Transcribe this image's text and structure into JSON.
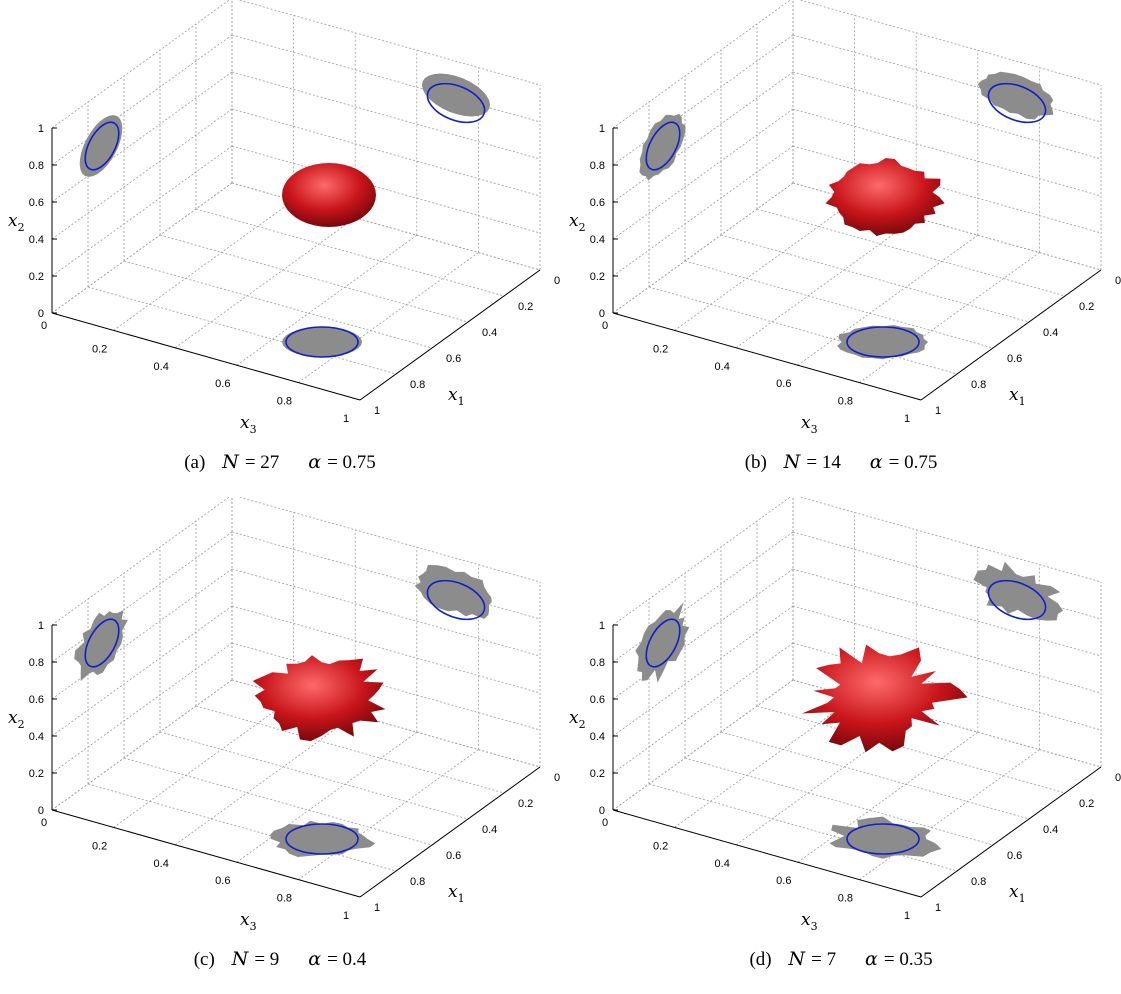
{
  "figure": {
    "axes": {
      "x_label": "x",
      "x_sub": "3",
      "y_label": "x",
      "y_sub": "2",
      "z_label": "x",
      "z_sub": "1",
      "x_ticks": [
        "0",
        "0.2",
        "0.4",
        "0.6",
        "0.8",
        "1"
      ],
      "y_ticks": [
        "0",
        "0.2",
        "0.4",
        "0.6",
        "0.8",
        "1"
      ],
      "z_ticks": [
        "0",
        "0.2",
        "0.4",
        "0.6",
        "0.8",
        "1"
      ]
    },
    "colors": {
      "surface": "#c8151b",
      "projection": "#8c8c8c",
      "ellipse": "#1020c8",
      "grid": "#9a9a9a"
    },
    "panels": [
      {
        "id": "a",
        "label": "(a)",
        "N": "27",
        "alpha": "0.75",
        "roughness": 0.0
      },
      {
        "id": "b",
        "label": "(b)",
        "N": "14",
        "alpha": "0.75",
        "roughness": 0.35
      },
      {
        "id": "c",
        "label": "(c)",
        "N": "9",
        "alpha": "0.4",
        "roughness": 0.6
      },
      {
        "id": "d",
        "label": "(d)",
        "N": "7",
        "alpha": "0.35",
        "roughness": 0.9
      }
    ]
  }
}
